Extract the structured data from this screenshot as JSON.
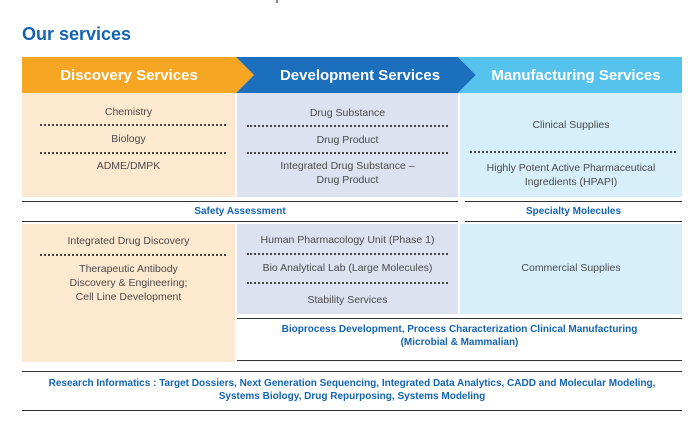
{
  "page": {
    "title": "Our services"
  },
  "colors": {
    "discovery": "#f6a623",
    "development": "#1b6fbd",
    "manufacturing": "#56c3ec",
    "discovery_bg": "#fde9cf",
    "development_bg": "#dde2f1",
    "manufacturing_bg": "#d7effa",
    "accent_text": "#1464b0"
  },
  "headers": {
    "discovery": "Discovery Services",
    "development": "Development Services",
    "manufacturing": "Manufacturing Services"
  },
  "discovery": {
    "top_items": [
      "Chemistry",
      "Biology",
      "ADME/DMPK"
    ],
    "bottom_items": [
      "Integrated Drug Discovery",
      "Therapeutic Antibody\nDiscovery & Engineering;\nCell Line Development"
    ]
  },
  "development": {
    "top_items": [
      "Drug Substance",
      "Drug Product",
      "Integrated Drug Substance –\nDrug Product"
    ],
    "bottom_items": [
      "Human Pharmacology Unit (Phase 1)",
      "Bio Analytical Lab (Large Molecules)",
      "Stability Services"
    ]
  },
  "manufacturing": {
    "top_items": [
      "Clinical Supplies",
      "Highly Potent Active Pharmaceutical\nIngredients (HPAPI)"
    ],
    "bottom_items": [
      "Commercial Supplies"
    ]
  },
  "bands": {
    "safety_assessment": "Safety Assessment",
    "specialty_molecules": "Specialty Molecules",
    "bioprocess": "Bioprocess Development, Process Characterization Clinical Manufacturing\n(Microbial & Mammalian)",
    "research_informatics": "Research Informatics : Target Dossiers, Next Generation Sequencing, Integrated Data Analytics, CADD and Molecular Modeling,\nSystems Biology, Drug Repurposing, Systems Modeling"
  }
}
